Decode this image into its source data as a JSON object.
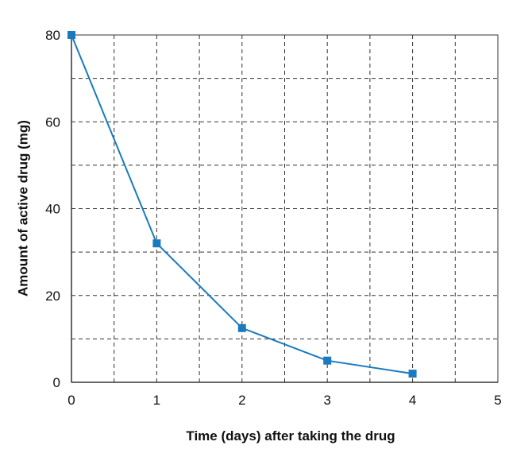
{
  "chart_data": {
    "type": "line",
    "title": "",
    "xlabel": "Time (days) after taking the drug",
    "ylabel": "Amount of active drug (mg)",
    "xlim": [
      0,
      5
    ],
    "ylim": [
      0,
      80
    ],
    "x_ticks": [
      "0",
      "1",
      "2",
      "3",
      "4",
      "5"
    ],
    "y_ticks": [
      "0",
      "20",
      "40",
      "60",
      "80"
    ],
    "grid": "dashed, every 0.5 day and every 10 mg",
    "legend": "none",
    "series": [
      {
        "x": [
          0,
          1,
          2,
          3,
          4
        ],
        "y": [
          80,
          32,
          12.5,
          5,
          2
        ]
      }
    ],
    "colors": {
      "line": "#1a7ac0",
      "marker": "#1a7ac0",
      "grid": "#333333",
      "axis": "#333333"
    }
  }
}
